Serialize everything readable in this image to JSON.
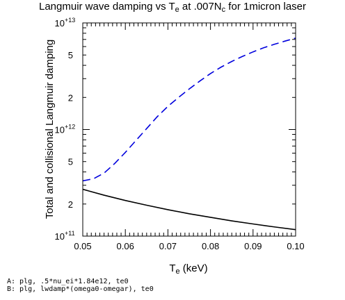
{
  "chart_data": {
    "type": "line",
    "title": {
      "main": "Langmuir wave damping vs T",
      "sub": "e",
      "rest": " at .007N",
      "sub2": "c",
      "end": " for 1micron laser"
    },
    "xlabel": {
      "main": "T",
      "sub": "e",
      "rest": " (keV)"
    },
    "ylabel": "Total and collisional Langmuir damping",
    "xlim": [
      0.05,
      0.1
    ],
    "ylim": [
      100000000000.0,
      10000000000000.0
    ],
    "yscale": "log",
    "x_ticks": [
      "0.05",
      "0.06",
      "0.07",
      "0.08",
      "0.09",
      "0.10"
    ],
    "y_major_ticks": [
      {
        "value": 100000000000.0,
        "mantissa": "10",
        "exponent": "+11"
      },
      {
        "value": 1000000000000.0,
        "mantissa": "10",
        "exponent": "+12"
      },
      {
        "value": 10000000000000.0,
        "mantissa": "10",
        "exponent": "+13"
      }
    ],
    "y_minor_labels": [
      {
        "value": 200000000000.0,
        "label": "2"
      },
      {
        "value": 500000000000.0,
        "label": "5"
      },
      {
        "value": 2000000000000.0,
        "label": "2"
      },
      {
        "value": 5000000000000.0,
        "label": "5"
      }
    ],
    "series": [
      {
        "style": "solid",
        "color": "#000000",
        "x": [
          0.05,
          0.055,
          0.06,
          0.065,
          0.07,
          0.075,
          0.08,
          0.085,
          0.09,
          0.095,
          0.1
        ],
        "y": [
          275000000000.0,
          242000000000.0,
          216000000000.0,
          195000000000.0,
          177000000000.0,
          162000000000.0,
          150000000000.0,
          139000000000.0,
          130000000000.0,
          122000000000.0,
          115000000000.0
        ]
      },
      {
        "style": "dashed",
        "color": "#0000dd",
        "x": [
          0.05,
          0.0525,
          0.055,
          0.0575,
          0.06,
          0.0625,
          0.065,
          0.0675,
          0.07,
          0.0725,
          0.075,
          0.0775,
          0.08,
          0.0825,
          0.085,
          0.0875,
          0.09,
          0.0925,
          0.095,
          0.0975,
          0.1
        ],
        "y": [
          330000000000.0,
          345000000000.0,
          390000000000.0,
          480000000000.0,
          610000000000.0,
          790000000000.0,
          1020000000000.0,
          1320000000000.0,
          1650000000000.0,
          2000000000000.0,
          2400000000000.0,
          2850000000000.0,
          3350000000000.0,
          3850000000000.0,
          4350000000000.0,
          4850000000000.0,
          5350000000000.0,
          5850000000000.0,
          6300000000000.0,
          6750000000000.0,
          7200000000000.0
        ]
      }
    ]
  },
  "footer": {
    "line_a": "A: plg, .5*nu_ei*1.84e12, te0",
    "line_b": "B: plg, lwdamp*(omega0-omegar), te0"
  }
}
